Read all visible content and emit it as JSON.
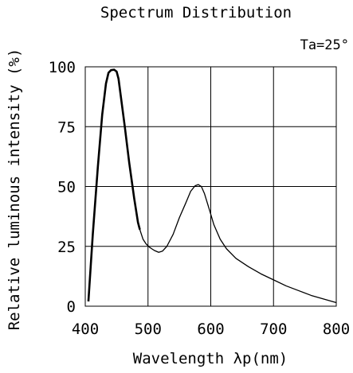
{
  "chart_data": {
    "type": "line",
    "title": "Spectrum Distribution",
    "annotation": "Ta=25°",
    "xlabel": "Wavelength λp(nm)",
    "ylabel": "Relative luminous intensity (%)",
    "xlim": [
      400,
      800
    ],
    "ylim": [
      0,
      100
    ],
    "x_ticks": [
      400,
      500,
      600,
      700,
      800
    ],
    "y_ticks": [
      0,
      25,
      50,
      75,
      100
    ],
    "grid": true,
    "series": [
      {
        "color": "#000000",
        "points": [
          [
            405,
            2
          ],
          [
            412,
            30
          ],
          [
            420,
            58
          ],
          [
            427,
            80
          ],
          [
            433,
            93
          ],
          [
            437,
            97.5
          ],
          [
            441,
            98.6
          ],
          [
            446,
            98.8
          ],
          [
            450,
            98
          ],
          [
            453,
            95
          ],
          [
            457,
            87
          ],
          [
            463,
            75
          ],
          [
            470,
            60
          ],
          [
            478,
            45
          ],
          [
            484,
            35
          ],
          [
            487,
            32
          ],
          [
            492,
            28
          ],
          [
            497,
            26
          ],
          [
            503,
            24.5
          ],
          [
            510,
            23.3
          ],
          [
            517,
            22.5
          ],
          [
            523,
            23
          ],
          [
            530,
            25
          ],
          [
            540,
            30
          ],
          [
            550,
            37
          ],
          [
            560,
            43
          ],
          [
            568,
            48
          ],
          [
            575,
            50.3
          ],
          [
            580,
            50.8
          ],
          [
            585,
            50
          ],
          [
            590,
            47
          ],
          [
            597,
            41
          ],
          [
            605,
            34
          ],
          [
            615,
            28
          ],
          [
            625,
            24
          ],
          [
            640,
            20
          ],
          [
            660,
            16.5
          ],
          [
            680,
            13.5
          ],
          [
            700,
            11
          ],
          [
            720,
            8.5
          ],
          [
            740,
            6.5
          ],
          [
            760,
            4.5
          ],
          [
            780,
            3
          ],
          [
            800,
            1.5
          ]
        ]
      }
    ]
  }
}
